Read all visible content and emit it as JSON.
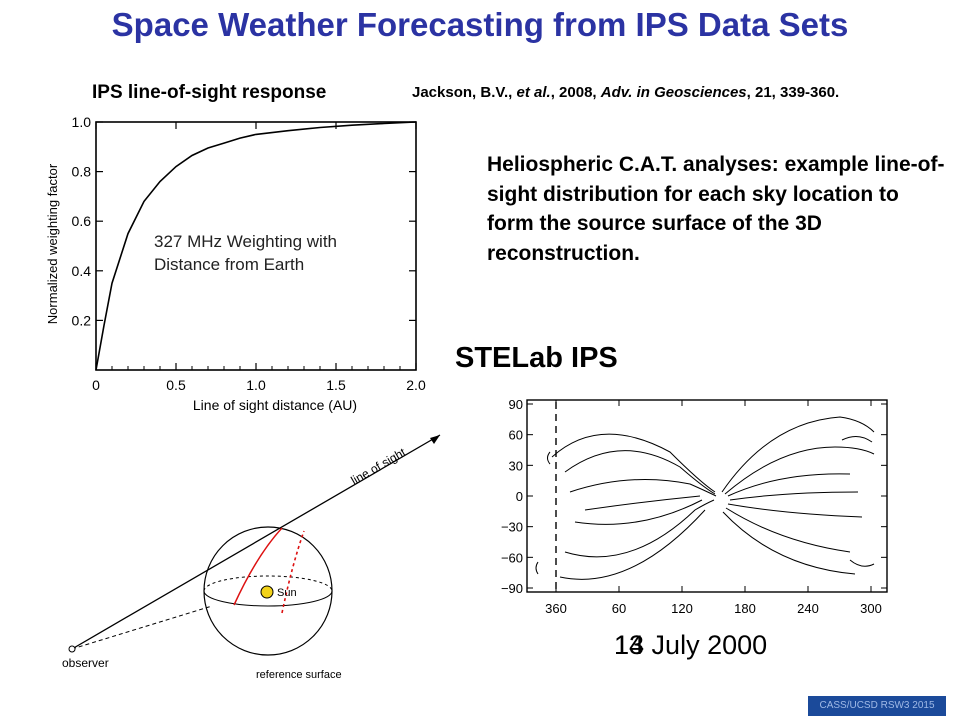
{
  "title": "Space Weather Forecasting from IPS Data Sets",
  "left_subtitle": "IPS line-of-sight response",
  "citation": {
    "authors": "Jackson, B.V., ",
    "etal": "et al.",
    "year": ", 2008, ",
    "journal": "Adv. in Geosciences",
    "details": ", 21, 339-360."
  },
  "cat_text": "Heliospheric C.A.T. analyses: example line-of-sight distribution for each sky location to form the source surface of the 3D reconstruction.",
  "stelab_label": "STELab IPS",
  "date": {
    "day_a": "13",
    "day_b": "14",
    "rest": " July 2000"
  },
  "footer": "CASS/UCSD RSW3 2015",
  "weighting_chart": {
    "annotation_line1": "327 MHz Weighting with",
    "annotation_line2": "Distance from Earth",
    "xlabel": "Line of sight  distance (AU)",
    "ylabel": "Normalized weighting factor",
    "xticks": [
      "0",
      "0.5",
      "1.0",
      "1.5",
      "2.0"
    ],
    "yticks": [
      "1.0",
      "0.8",
      "0.6",
      "0.4",
      "0.2"
    ]
  },
  "geometry_diagram": {
    "line_of_sight_label": "line of sight",
    "sun_label": "Sun",
    "observer_label": "observer",
    "reference_surface_label": "reference surface"
  },
  "map_chart": {
    "yticks": [
      "90",
      "60",
      "30",
      "0",
      "−30",
      "−60",
      "−90"
    ],
    "xticks": [
      "360",
      "60",
      "120",
      "180",
      "240",
      "300"
    ]
  },
  "chart_data": [
    {
      "type": "line",
      "title": "",
      "xlabel": "Line of sight  distance (AU)",
      "ylabel": "Normalized weighting factor",
      "annotation": "327 MHz Weighting with Distance from Earth",
      "xlim": [
        0,
        2.0
      ],
      "ylim": [
        0,
        1.0
      ],
      "x": [
        0.0,
        0.05,
        0.1,
        0.2,
        0.3,
        0.4,
        0.5,
        0.6,
        0.7,
        0.8,
        0.9,
        1.0,
        1.2,
        1.4,
        1.6,
        1.8,
        2.0
      ],
      "y": [
        0.0,
        0.18,
        0.35,
        0.55,
        0.68,
        0.76,
        0.82,
        0.865,
        0.895,
        0.915,
        0.935,
        0.95,
        0.965,
        0.978,
        0.987,
        0.994,
        1.0
      ]
    }
  ]
}
